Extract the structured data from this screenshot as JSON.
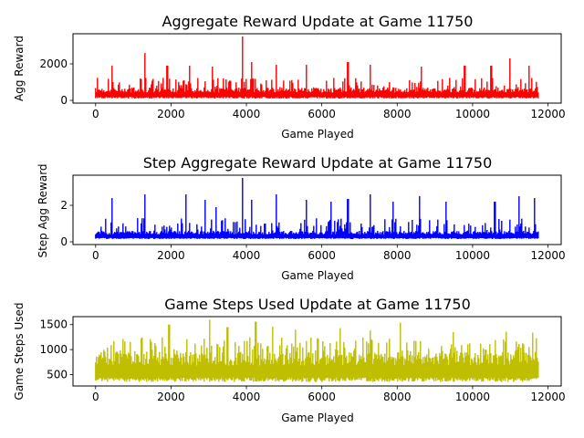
{
  "chart_data": [
    {
      "type": "line",
      "title": "Aggregate Reward Update at Game 11750",
      "xlabel": "Game Played",
      "ylabel": "Agg Reward",
      "xlim": [
        -600,
        12350
      ],
      "ylim": [
        -150,
        3650
      ],
      "xticks": [
        "0",
        "2000",
        "4000",
        "6000",
        "8000",
        "10000",
        "12000"
      ],
      "yticks": [
        "0",
        "2000"
      ],
      "ytick_values": [
        0,
        2000
      ],
      "series_color": "#ff0000",
      "n_points": 11750,
      "base_range": [
        100,
        700
      ],
      "spike_height": 1250,
      "peaks": [
        [
          1310,
          2600
        ],
        [
          3900,
          3500
        ],
        [
          4150,
          2100
        ],
        [
          6700,
          2100
        ],
        [
          11000,
          2300
        ],
        [
          440,
          1900
        ],
        [
          1900,
          1900
        ],
        [
          2500,
          1900
        ],
        [
          3100,
          1850
        ],
        [
          4800,
          1950
        ],
        [
          5600,
          1950
        ],
        [
          7300,
          1950
        ],
        [
          8650,
          1850
        ],
        [
          9800,
          1900
        ],
        [
          10500,
          1900
        ],
        [
          11500,
          1900
        ]
      ]
    },
    {
      "type": "line",
      "title": "Step Aggregate Reward Update at Game 11750",
      "xlabel": "Game Played",
      "ylabel": "Step Agg Reward",
      "xlim": [
        -600,
        12350
      ],
      "ylim": [
        -0.15,
        3.65
      ],
      "xticks": [
        "0",
        "2000",
        "4000",
        "6000",
        "8000",
        "10000",
        "12000"
      ],
      "yticks": [
        "0",
        "2"
      ],
      "ytick_values": [
        0,
        2
      ],
      "series_color": "#0000ff",
      "n_points": 11750,
      "base_range": [
        0.15,
        0.6
      ],
      "spike_height": 1.3,
      "peaks": [
        [
          3900,
          3.5
        ],
        [
          1310,
          2.6
        ],
        [
          2400,
          2.6
        ],
        [
          4800,
          2.6
        ],
        [
          7300,
          2.6
        ],
        [
          8600,
          2.5
        ],
        [
          11250,
          2.5
        ],
        [
          11650,
          2.4
        ],
        [
          440,
          2.4
        ],
        [
          5600,
          2.3
        ],
        [
          6700,
          2.35
        ],
        [
          2900,
          2.3
        ],
        [
          4150,
          2.3
        ],
        [
          3200,
          1.9
        ],
        [
          6250,
          2.2
        ],
        [
          7900,
          2.2
        ],
        [
          9300,
          2.2
        ],
        [
          10600,
          2.2
        ]
      ]
    },
    {
      "type": "line",
      "title": "Game Steps Used Update at Game 11750",
      "xlabel": "Game Played",
      "ylabel": "Game Steps Used",
      "xlim": [
        -600,
        12350
      ],
      "ylim": [
        270,
        1660
      ],
      "xticks": [
        "0",
        "2000",
        "4000",
        "6000",
        "8000",
        "10000",
        "12000"
      ],
      "yticks": [
        "500",
        "1000",
        "1500"
      ],
      "ytick_values": [
        500,
        1000,
        1500
      ],
      "series_color": "#bfbf00",
      "n_points": 11750,
      "base_range": [
        350,
        950
      ],
      "spike_height": 1250,
      "peaks": [
        [
          3020,
          1600
        ],
        [
          4250,
          1560
        ],
        [
          8100,
          1540
        ],
        [
          1950,
          1500
        ],
        [
          4700,
          1460
        ],
        [
          6500,
          1430
        ],
        [
          3500,
          1450
        ],
        [
          5300,
          1400
        ],
        [
          10900,
          1360
        ],
        [
          7300,
          1380
        ],
        [
          9500,
          1350
        ],
        [
          11600,
          1340
        ]
      ]
    }
  ]
}
